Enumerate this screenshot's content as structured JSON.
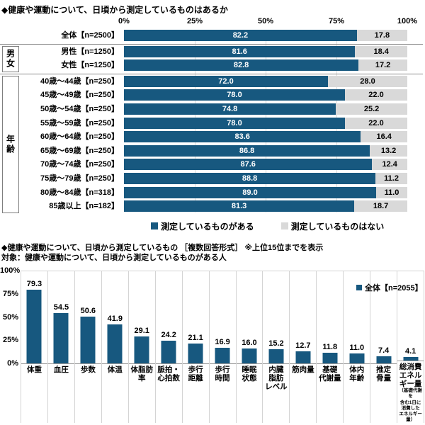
{
  "colors": {
    "bar_blue": "#17587F",
    "bar_gray": "#D9D9D9",
    "separator_gray": "#8C8C8C",
    "grid_gray": "#D4D4D4",
    "text_black": "#000000"
  },
  "chart_data": [
    {
      "type": "bar",
      "variant": "horizontal-stacked-100",
      "title": "◆健康や運動について、日頃から測定しているものはあるか",
      "axis_ticks": [
        "0%",
        "25%",
        "50%",
        "75%",
        "100%"
      ],
      "xlim": [
        0,
        100
      ],
      "legend": [
        "測定しているものがある",
        "測定しているものはない"
      ],
      "series_names": [
        "測定しているものがある",
        "測定しているものはない"
      ],
      "groups": [
        {
          "label": "男女",
          "first_row": 1,
          "last_row": 2
        },
        {
          "label": "年齢",
          "first_row": 3,
          "last_row": 12
        }
      ],
      "rows": [
        {
          "label": "全体【n=2500】",
          "values": [
            82.2,
            17.8
          ]
        },
        {
          "label": "男性【n=1250】",
          "values": [
            81.6,
            18.4
          ]
        },
        {
          "label": "女性【n=1250】",
          "values": [
            82.8,
            17.2
          ]
        },
        {
          "label": "40歳～44歳【n=250】",
          "values": [
            72.0,
            28.0
          ]
        },
        {
          "label": "45歳～49歳【n=250】",
          "values": [
            78.0,
            22.0
          ]
        },
        {
          "label": "50歳～54歳【n=250】",
          "values": [
            74.8,
            25.2
          ]
        },
        {
          "label": "55歳～59歳【n=250】",
          "values": [
            78.0,
            22.0
          ]
        },
        {
          "label": "60歳～64歳【n=250】",
          "values": [
            83.6,
            16.4
          ]
        },
        {
          "label": "65歳～69歳【n=250】",
          "values": [
            86.8,
            13.2
          ]
        },
        {
          "label": "70歳～74歳【n=250】",
          "values": [
            87.6,
            12.4
          ]
        },
        {
          "label": "75歳～79歳【n=250】",
          "values": [
            88.8,
            11.2
          ]
        },
        {
          "label": "80歳～84歳【n=318】",
          "values": [
            89.0,
            11.0
          ]
        },
        {
          "label": "85歳以上【n=182】",
          "values": [
            81.3,
            18.7
          ]
        }
      ]
    },
    {
      "type": "bar",
      "variant": "vertical",
      "title": "◆健康や運動について、日頃から測定しているもの ［複数回答形式］ ※上位15位までを表示",
      "subtitle": "対象：健康や運動について、日頃から測定しているものがある人",
      "legend": "全体【n=2055】",
      "y_ticks": [
        "100%",
        "75%",
        "50%",
        "25%",
        "0%"
      ],
      "ylim": [
        0,
        100
      ],
      "categories": [
        "体重",
        "血圧",
        "歩数",
        "体温",
        "体脂肪率",
        "脈拍・心拍数",
        "歩行距離",
        "歩行時間",
        "睡眠状態",
        "内臓脂肪レベル",
        "筋肉量",
        "基礎代謝量",
        "体内年齢",
        "推定骨量",
        "総消費エネルギー量"
      ],
      "category_display": [
        "体重",
        "血圧",
        "歩数",
        "体温",
        "体脂肪\n率",
        "脈拍・\n心拍数",
        "歩行\n距離",
        "歩行\n時間",
        "睡眠\n状態",
        "内臓\n脂肪\nレベル",
        "筋肉量",
        "基礎\n代謝量",
        "体内\n年齢",
        "推定\n骨量",
        "総消費\nエネル\nギー量"
      ],
      "category_note": {
        "index": 14,
        "text": "（基礎代謝を含む1日に消費したエネルギー量）",
        "display": "（基礎代謝を\n含む1日に\n消費した\nエネルギー\n量）"
      },
      "values": [
        79.3,
        54.5,
        50.6,
        41.9,
        29.1,
        24.2,
        21.1,
        16.9,
        16.0,
        15.2,
        12.7,
        11.8,
        11.0,
        7.4,
        4.1
      ]
    }
  ]
}
